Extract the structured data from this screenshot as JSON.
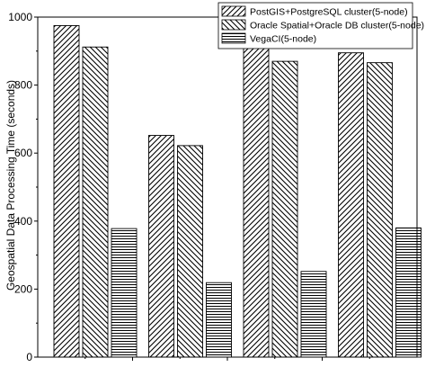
{
  "chart_data": {
    "type": "bar",
    "title": "",
    "xlabel": "",
    "ylabel": "Geospatial Data Processing Time (seconds)",
    "ylim": [
      0,
      1000
    ],
    "yticks": [
      "0",
      "200",
      "400",
      "600",
      "800",
      "1000"
    ],
    "categories": [
      "",
      "",
      "",
      ""
    ],
    "grid": false,
    "legend_position": "top-right",
    "series": [
      {
        "name": "PostGIS+PostgreSQL cluster(5-node)",
        "pattern": "diagonal-forward",
        "values": [
          975,
          652,
          913,
          895
        ]
      },
      {
        "name": "Oracle Spatial+Oracle  DB cluster(5-node)",
        "pattern": "diagonal-backward",
        "values": [
          912,
          622,
          870,
          866
        ]
      },
      {
        "name": "VegaCI(5-node)",
        "pattern": "horizontal",
        "values": [
          378,
          219,
          252,
          380
        ]
      }
    ],
    "colors": {
      "ink": "#000000",
      "background": "#ffffff"
    }
  }
}
